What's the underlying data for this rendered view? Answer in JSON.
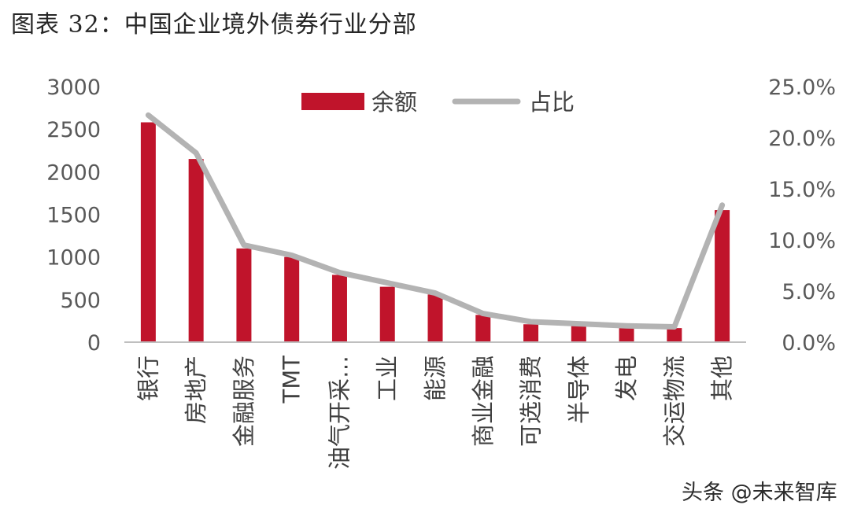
{
  "title": "图表 32：中国企业境外债券行业分部",
  "watermark": "头条 @未来智库",
  "chart_data": {
    "type": "bar",
    "categories": [
      "银行",
      "房地产",
      "金融服务",
      "TMT",
      "油气开采…",
      "工业",
      "能源",
      "商业金融",
      "可选消费",
      "半导体",
      "发电",
      "交运物流",
      "其他"
    ],
    "series": [
      {
        "name": "余额",
        "type": "bar",
        "axis": "left",
        "color": "#c0142b",
        "values": [
          2580,
          2150,
          1100,
          1000,
          790,
          650,
          560,
          320,
          210,
          190,
          170,
          165,
          1550
        ]
      },
      {
        "name": "占比",
        "type": "line",
        "axis": "right",
        "color": "#b3b3b3",
        "values": [
          22.2,
          18.5,
          9.5,
          8.5,
          6.8,
          5.8,
          4.8,
          2.8,
          2.0,
          1.8,
          1.6,
          1.5,
          13.4
        ]
      }
    ],
    "y_left": {
      "range": [
        0,
        3000
      ],
      "ticks": [
        "0",
        "500",
        "1000",
        "1500",
        "2000",
        "2500",
        "3000"
      ]
    },
    "y_right": {
      "range": [
        0,
        25
      ],
      "ticks": [
        "0.0%",
        "5.0%",
        "10.0%",
        "15.0%",
        "20.0%",
        "25.0%"
      ]
    },
    "legend": [
      "余额",
      "占比"
    ],
    "legend_position": "top-center"
  }
}
